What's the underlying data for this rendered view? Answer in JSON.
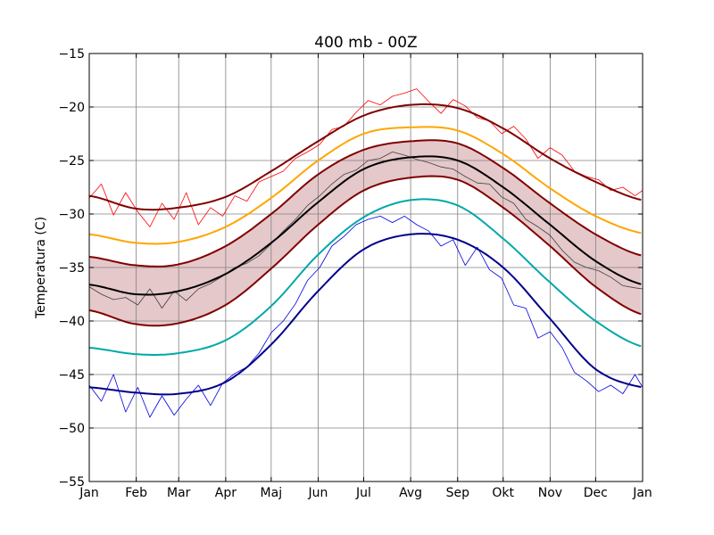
{
  "chart_data": {
    "type": "line",
    "title": "400 mb - 00Z",
    "xlabel": "",
    "ylabel": "Temperatura (C)",
    "xlim": [
      0,
      365
    ],
    "ylim": [
      -55,
      -15
    ],
    "grid": true,
    "x_ticks": [
      {
        "label": "Jan",
        "day": 0
      },
      {
        "label": "Feb",
        "day": 31
      },
      {
        "label": "Mar",
        "day": 59
      },
      {
        "label": "Apr",
        "day": 90
      },
      {
        "label": "Maj",
        "day": 120
      },
      {
        "label": "Jun",
        "day": 151
      },
      {
        "label": "Jul",
        "day": 181
      },
      {
        "label": "Avg",
        "day": 212
      },
      {
        "label": "Sep",
        "day": 243
      },
      {
        "label": "Okt",
        "day": 273
      },
      {
        "label": "Nov",
        "day": 304
      },
      {
        "label": "Dec",
        "day": 334
      },
      {
        "label": "Jan",
        "day": 365
      }
    ],
    "y_ticks": [
      -15,
      -20,
      -25,
      -30,
      -35,
      -40,
      -45,
      -50,
      -55
    ],
    "band": {
      "fill": "#e5c8ca",
      "upper_series": "mean_plus_sd",
      "lower_series": "mean_minus_sd"
    },
    "series": [
      {
        "key": "max_mean",
        "color": "#800000",
        "width": 2,
        "smooth": true,
        "x": [
          0,
          31,
          59,
          90,
          120,
          151,
          181,
          212,
          243,
          273,
          304,
          334,
          365
        ],
        "y": [
          -28.3,
          -29.5,
          -29.4,
          -28.4,
          -26.0,
          -23.2,
          -20.8,
          -19.8,
          -20.1,
          -22.0,
          -24.8,
          -27.0,
          -28.7
        ]
      },
      {
        "key": "p90",
        "color": "#ffa500",
        "width": 2,
        "smooth": true,
        "x": [
          0,
          31,
          59,
          90,
          120,
          151,
          181,
          212,
          243,
          273,
          304,
          334,
          365
        ],
        "y": [
          -31.9,
          -32.7,
          -32.6,
          -31.2,
          -28.5,
          -25.0,
          -22.5,
          -21.9,
          -22.2,
          -24.4,
          -27.6,
          -30.2,
          -31.8
        ]
      },
      {
        "key": "mean_plus_sd",
        "color": "#800000",
        "width": 2,
        "smooth": true,
        "x": [
          0,
          31,
          59,
          90,
          120,
          151,
          181,
          212,
          243,
          273,
          304,
          334,
          365
        ],
        "y": [
          -34.0,
          -34.8,
          -34.7,
          -33.0,
          -30.0,
          -26.3,
          -24.0,
          -23.2,
          -23.4,
          -25.7,
          -29.0,
          -31.9,
          -33.9
        ]
      },
      {
        "key": "mean",
        "color": "#000000",
        "width": 2,
        "smooth": true,
        "x": [
          0,
          31,
          59,
          90,
          120,
          151,
          181,
          212,
          243,
          273,
          304,
          334,
          365
        ],
        "y": [
          -36.6,
          -37.5,
          -37.2,
          -35.6,
          -32.7,
          -28.9,
          -25.8,
          -24.7,
          -25.0,
          -27.5,
          -31.0,
          -34.4,
          -36.6
        ]
      },
      {
        "key": "mean_minus_sd",
        "color": "#800000",
        "width": 2,
        "smooth": true,
        "x": [
          0,
          31,
          59,
          90,
          120,
          151,
          181,
          212,
          243,
          273,
          304,
          334,
          365
        ],
        "y": [
          -39.0,
          -40.3,
          -40.2,
          -38.5,
          -35.1,
          -31.0,
          -27.8,
          -26.6,
          -26.8,
          -29.4,
          -33.0,
          -36.8,
          -39.4
        ]
      },
      {
        "key": "p10",
        "color": "#00a8a8",
        "width": 2,
        "smooth": true,
        "x": [
          0,
          31,
          59,
          90,
          120,
          151,
          181,
          212,
          243,
          273,
          304,
          334,
          365
        ],
        "y": [
          -42.5,
          -43.1,
          -43.0,
          -41.8,
          -38.6,
          -33.8,
          -30.3,
          -28.7,
          -29.2,
          -32.3,
          -36.4,
          -40.0,
          -42.4
        ]
      },
      {
        "key": "min_mean",
        "color": "#00008b",
        "width": 2,
        "smooth": true,
        "x": [
          0,
          31,
          59,
          90,
          120,
          151,
          181,
          212,
          243,
          273,
          304,
          334,
          365
        ],
        "y": [
          -46.2,
          -46.7,
          -46.8,
          -45.7,
          -42.2,
          -37.2,
          -33.3,
          -31.9,
          -32.4,
          -35.0,
          -39.8,
          -44.5,
          -46.2
        ]
      },
      {
        "key": "max_daily",
        "color": "#ff0000",
        "width": 0.8,
        "smooth": false,
        "x": [
          0,
          8,
          16,
          24,
          32,
          40,
          48,
          56,
          64,
          72,
          80,
          88,
          96,
          104,
          112,
          120,
          128,
          136,
          144,
          152,
          160,
          168,
          176,
          184,
          192,
          200,
          208,
          216,
          224,
          232,
          240,
          248,
          256,
          264,
          272,
          280,
          288,
          296,
          304,
          312,
          320,
          328,
          336,
          344,
          352,
          360,
          365
        ],
        "y": [
          -28.5,
          -27.2,
          -30.1,
          -28.0,
          -29.8,
          -31.2,
          -29.0,
          -30.5,
          -28.0,
          -31.0,
          -29.4,
          -30.2,
          -28.3,
          -28.8,
          -27.0,
          -26.5,
          -26.0,
          -24.8,
          -24.2,
          -23.5,
          -22.1,
          -21.8,
          -20.5,
          -19.4,
          -19.8,
          -19.0,
          -18.7,
          -18.3,
          -19.5,
          -20.6,
          -19.3,
          -19.9,
          -21.0,
          -21.3,
          -22.5,
          -21.8,
          -23.0,
          -24.8,
          -23.8,
          -24.5,
          -26.0,
          -26.5,
          -26.8,
          -27.8,
          -27.5,
          -28.3,
          -27.8
        ]
      },
      {
        "key": "mean_daily",
        "color": "#404040",
        "width": 0.8,
        "smooth": false,
        "x": [
          0,
          8,
          16,
          24,
          32,
          40,
          48,
          56,
          64,
          72,
          80,
          88,
          96,
          104,
          112,
          120,
          128,
          136,
          144,
          152,
          160,
          168,
          176,
          184,
          192,
          200,
          208,
          216,
          224,
          232,
          240,
          248,
          256,
          264,
          272,
          280,
          288,
          296,
          304,
          312,
          320,
          328,
          336,
          344,
          352,
          360,
          365
        ],
        "y": [
          -36.8,
          -37.5,
          -38.0,
          -37.8,
          -38.5,
          -37.0,
          -38.8,
          -37.2,
          -38.1,
          -37.0,
          -36.5,
          -35.8,
          -35.0,
          -34.6,
          -33.9,
          -32.8,
          -31.6,
          -30.5,
          -29.2,
          -28.3,
          -27.2,
          -26.3,
          -25.9,
          -25.0,
          -24.8,
          -24.2,
          -24.5,
          -24.9,
          -25.2,
          -25.6,
          -25.8,
          -26.5,
          -27.1,
          -27.2,
          -28.4,
          -29.0,
          -30.5,
          -31.2,
          -32.0,
          -33.4,
          -34.5,
          -35.0,
          -35.3,
          -35.9,
          -36.7,
          -36.9,
          -37.0
        ]
      },
      {
        "key": "min_daily",
        "color": "#0000dd",
        "width": 0.8,
        "smooth": false,
        "x": [
          0,
          8,
          16,
          24,
          32,
          40,
          48,
          56,
          64,
          72,
          80,
          88,
          96,
          104,
          112,
          120,
          128,
          136,
          144,
          152,
          160,
          168,
          176,
          184,
          192,
          200,
          208,
          216,
          224,
          232,
          240,
          248,
          256,
          264,
          272,
          280,
          288,
          296,
          304,
          312,
          320,
          328,
          336,
          344,
          352,
          360,
          365
        ],
        "y": [
          -46.0,
          -47.5,
          -45.0,
          -48.5,
          -46.2,
          -49.0,
          -47.0,
          -48.8,
          -47.3,
          -46.0,
          -47.9,
          -45.8,
          -44.9,
          -44.3,
          -43.0,
          -41.1,
          -40.0,
          -38.4,
          -36.2,
          -35.0,
          -33.0,
          -32.1,
          -31.0,
          -30.5,
          -30.2,
          -30.8,
          -30.2,
          -31.0,
          -31.6,
          -33.0,
          -32.4,
          -34.8,
          -33.1,
          -35.2,
          -36.0,
          -38.5,
          -38.8,
          -41.6,
          -41.0,
          -42.5,
          -44.8,
          -45.6,
          -46.6,
          -46.0,
          -46.8,
          -45.0,
          -46.2
        ]
      }
    ]
  }
}
